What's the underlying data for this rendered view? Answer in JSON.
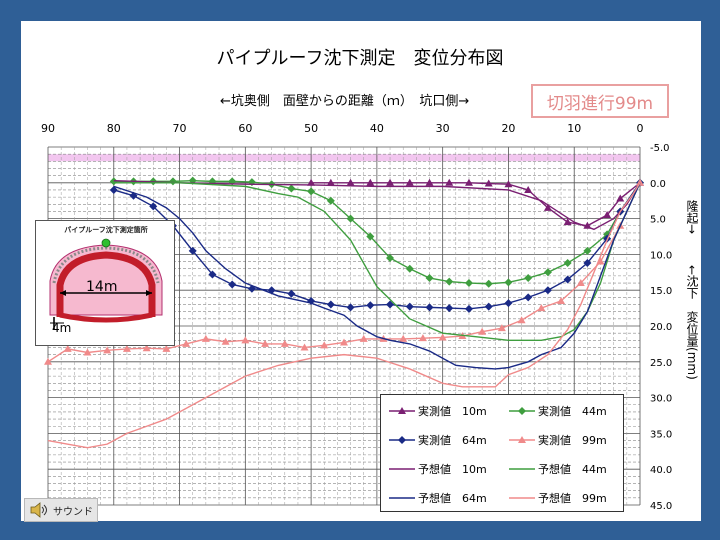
{
  "title": "パイプルーフ沈下測定　変位分布図",
  "subtitle": "←坑奥側　面壁からの距離（ｍ）　坑口側→",
  "progress_label": "切羽進行99m",
  "sound_button_label": "サウンド",
  "inset": {
    "title": "パイプルーフ沈下測定箇所",
    "width_label": "14m",
    "height_label": "4m"
  },
  "colors": {
    "actual_10m": "#7a1f72",
    "actual_44m": "#3f9e3f",
    "actual_64m": "#1a2a86",
    "actual_99m": "#f08a8a",
    "pred_10m": "#7a1f72",
    "pred_44m": "#3f9e3f",
    "pred_64m": "#1a2a86",
    "pred_99m": "#f08a8a",
    "band": "#f2c6ef"
  },
  "chart_data": {
    "type": "line",
    "title": "パイプルーフ沈下測定　変位分布図",
    "xlabel": "←坑奥側　面壁からの距離（ｍ）　坑口側→",
    "ylabel_left": "",
    "ylabel_right_top": "隆起→",
    "ylabel_right_bottom": "←沈下　変位量(mm)",
    "xlim": [
      90,
      0
    ],
    "ylim": [
      -5,
      45
    ],
    "x_ticks": [
      "90",
      "80",
      "70",
      "60",
      "50",
      "40",
      "30",
      "20",
      "10",
      "0"
    ],
    "y_ticks": [
      "-5.0",
      "0.0",
      "5.0",
      "10.0",
      "15.0",
      "20.0",
      "25.0",
      "30.0",
      "35.0",
      "40.0",
      "45.0"
    ],
    "grid": true,
    "band": [
      -4.0,
      -3.0
    ],
    "series": [
      {
        "name": "実測値　10m",
        "kind": "actual",
        "marker": "triangle",
        "color_key": "actual_10m",
        "x": [
          50,
          47,
          44,
          41,
          38,
          35,
          32,
          29,
          26,
          23,
          20,
          17,
          14,
          11,
          8,
          5,
          3,
          0
        ],
        "y": [
          0.0,
          0.0,
          0.0,
          0.0,
          0.0,
          0.0,
          0.0,
          0.0,
          0.0,
          0.1,
          0.2,
          1.0,
          3.5,
          5.5,
          6.0,
          4.5,
          2.2,
          0.0
        ]
      },
      {
        "name": "実測値　44m",
        "kind": "actual",
        "marker": "diamond",
        "color_key": "actual_44m",
        "x": [
          80,
          77,
          74,
          71,
          68,
          65,
          62,
          59,
          56,
          53,
          50,
          47,
          44,
          41,
          38,
          35,
          32,
          29,
          26,
          23,
          20,
          17,
          14,
          11,
          8,
          5,
          3,
          0
        ],
        "y": [
          -0.2,
          -0.2,
          -0.2,
          -0.2,
          -0.3,
          -0.2,
          -0.2,
          -0.1,
          0.2,
          0.8,
          1.2,
          2.5,
          5.0,
          7.5,
          10.5,
          12.0,
          13.3,
          13.8,
          14.0,
          14.1,
          13.9,
          13.3,
          12.5,
          11.2,
          9.5,
          7.2,
          4.0,
          0.0
        ]
      },
      {
        "name": "実測値　64m",
        "kind": "actual",
        "marker": "diamond",
        "color_key": "actual_64m",
        "x": [
          80,
          77,
          74,
          71,
          68,
          65,
          62,
          59,
          56,
          53,
          50,
          47,
          44,
          41,
          38,
          35,
          32,
          29,
          26,
          23,
          20,
          17,
          14,
          11,
          8,
          5,
          3,
          0
        ],
        "y": [
          1.0,
          1.8,
          3.3,
          6.0,
          9.5,
          12.8,
          14.2,
          14.8,
          15.0,
          15.5,
          16.5,
          17.0,
          17.4,
          17.1,
          17.0,
          17.3,
          17.4,
          17.5,
          17.6,
          17.3,
          16.8,
          16.0,
          15.0,
          13.5,
          11.2,
          7.8,
          4.0,
          0.0
        ]
      },
      {
        "name": "実測値　99m",
        "kind": "actual",
        "marker": "triangle",
        "color_key": "actual_99m",
        "x": [
          90,
          87,
          84,
          81,
          78,
          75,
          72,
          69,
          66,
          63,
          60,
          57,
          54,
          51,
          48,
          45,
          42,
          39,
          36,
          33,
          30,
          27,
          24,
          21,
          18,
          15,
          12,
          9,
          6,
          3,
          0
        ],
        "y": [
          25.0,
          23.2,
          23.7,
          23.4,
          23.2,
          23.1,
          23.2,
          22.5,
          21.8,
          22.2,
          22.0,
          22.5,
          22.5,
          23.0,
          22.7,
          22.3,
          21.8,
          21.8,
          21.8,
          21.7,
          21.6,
          21.4,
          20.8,
          20.3,
          19.2,
          17.5,
          16.5,
          14.0,
          11.0,
          6.0,
          0.0
        ]
      },
      {
        "name": "予想値　10m",
        "kind": "pred",
        "color_key": "pred_10m",
        "x": [
          80,
          70,
          60,
          50,
          40,
          30,
          20,
          15,
          10,
          7,
          4,
          2,
          0
        ],
        "y": [
          -0.3,
          0.0,
          0.2,
          0.3,
          0.5,
          0.5,
          1.0,
          2.5,
          5.5,
          6.5,
          5.0,
          3.0,
          0.0
        ]
      },
      {
        "name": "予想値　44m",
        "kind": "pred",
        "color_key": "pred_44m",
        "x": [
          80,
          70,
          60,
          55,
          52,
          48,
          44,
          40,
          35,
          30,
          25,
          20,
          15,
          12,
          10,
          8,
          6,
          4,
          2,
          0
        ],
        "y": [
          0.0,
          0.0,
          0.5,
          1.5,
          2.0,
          4.0,
          8.0,
          14.5,
          19.0,
          21.0,
          21.5,
          22.0,
          22.0,
          21.5,
          20.5,
          18.0,
          14.0,
          8.0,
          4.0,
          0.0
        ]
      },
      {
        "name": "予想値　64m",
        "kind": "pred",
        "color_key": "pred_64m",
        "x": [
          80,
          75,
          72,
          70,
          68,
          66,
          63,
          60,
          55,
          50,
          48,
          45,
          43,
          40,
          38,
          35,
          32,
          30,
          28,
          25,
          22,
          20,
          17,
          15,
          12,
          10,
          8,
          6,
          4,
          2,
          0
        ],
        "y": [
          0.5,
          2.0,
          3.5,
          5.0,
          7.0,
          9.5,
          12.0,
          14.0,
          15.8,
          16.8,
          17.5,
          18.5,
          20.0,
          21.5,
          22.0,
          22.5,
          23.5,
          24.5,
          25.5,
          25.8,
          26.0,
          25.8,
          25.0,
          24.0,
          23.0,
          21.0,
          18.0,
          13.0,
          8.0,
          4.0,
          0.0
        ]
      },
      {
        "name": "予想値　99m",
        "kind": "pred",
        "color_key": "pred_99m",
        "x": [
          90,
          87,
          84,
          81,
          78,
          75,
          72,
          69,
          66,
          63,
          60,
          55,
          50,
          45,
          40,
          35,
          30,
          27,
          25,
          22,
          20,
          17,
          14,
          11,
          9,
          7,
          5,
          3,
          1,
          0
        ],
        "y": [
          36.0,
          36.5,
          37.0,
          36.5,
          35.0,
          34.0,
          33.0,
          31.5,
          30.0,
          28.5,
          27.0,
          25.5,
          24.5,
          24.0,
          24.5,
          26.0,
          28.0,
          28.5,
          28.5,
          28.5,
          26.8,
          25.8,
          24.0,
          20.5,
          17.0,
          12.5,
          8.0,
          4.0,
          1.5,
          0.0
        ]
      }
    ]
  }
}
